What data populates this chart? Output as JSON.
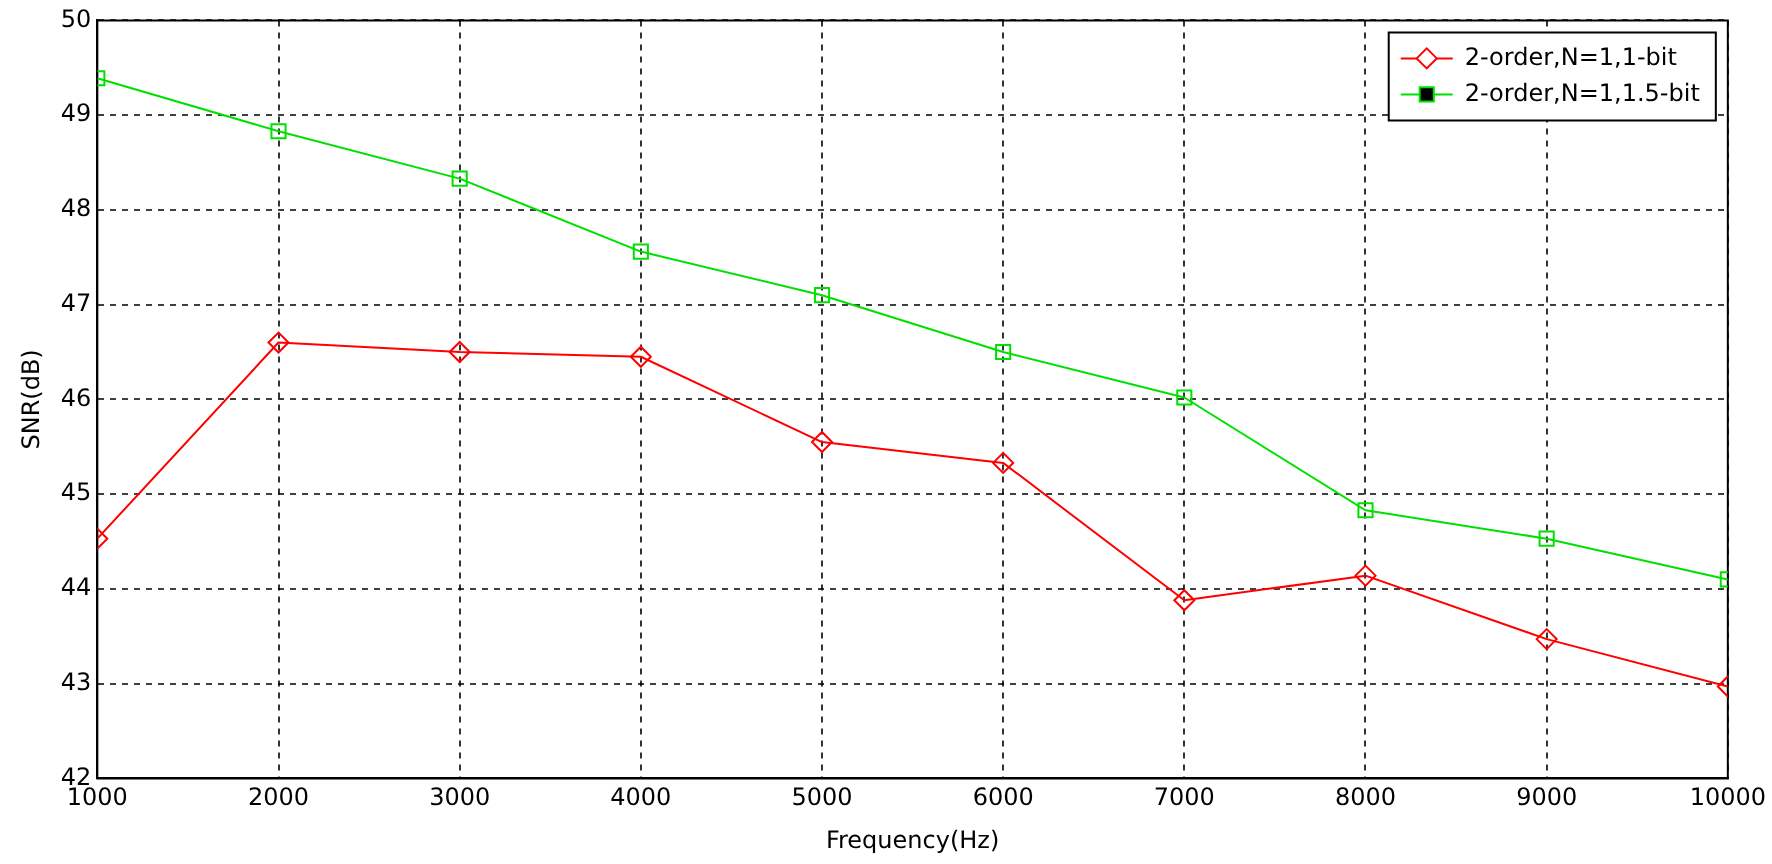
{
  "chart_data": {
    "type": "line",
    "xlabel": "Frequency(Hz)",
    "ylabel": "SNR(dB)",
    "x": [
      1000,
      2000,
      3000,
      4000,
      5000,
      6000,
      7000,
      8000,
      9000,
      10000
    ],
    "xlim": [
      1000,
      10000
    ],
    "xticks": [
      1000,
      2000,
      3000,
      4000,
      5000,
      6000,
      7000,
      8000,
      9000,
      10000
    ],
    "ylim": [
      42,
      50
    ],
    "yticks": [
      42,
      43,
      44,
      45,
      46,
      47,
      48,
      49,
      50
    ],
    "grid": true,
    "legend": "top right",
    "line_style": "solid",
    "series": [
      {
        "name": "2-order,N=1,1-bit",
        "color": "#ff0000",
        "marker": "diamond",
        "values": [
          44.53,
          46.6,
          46.5,
          46.45,
          45.55,
          45.33,
          43.88,
          44.14,
          43.47,
          42.97
        ]
      },
      {
        "name": "2-order,N=1,1.5-bit",
        "color": "#00e000",
        "marker": "square",
        "values": [
          49.39,
          48.83,
          48.33,
          47.56,
          47.1,
          46.5,
          46.02,
          44.83,
          44.53,
          44.1
        ]
      }
    ]
  }
}
